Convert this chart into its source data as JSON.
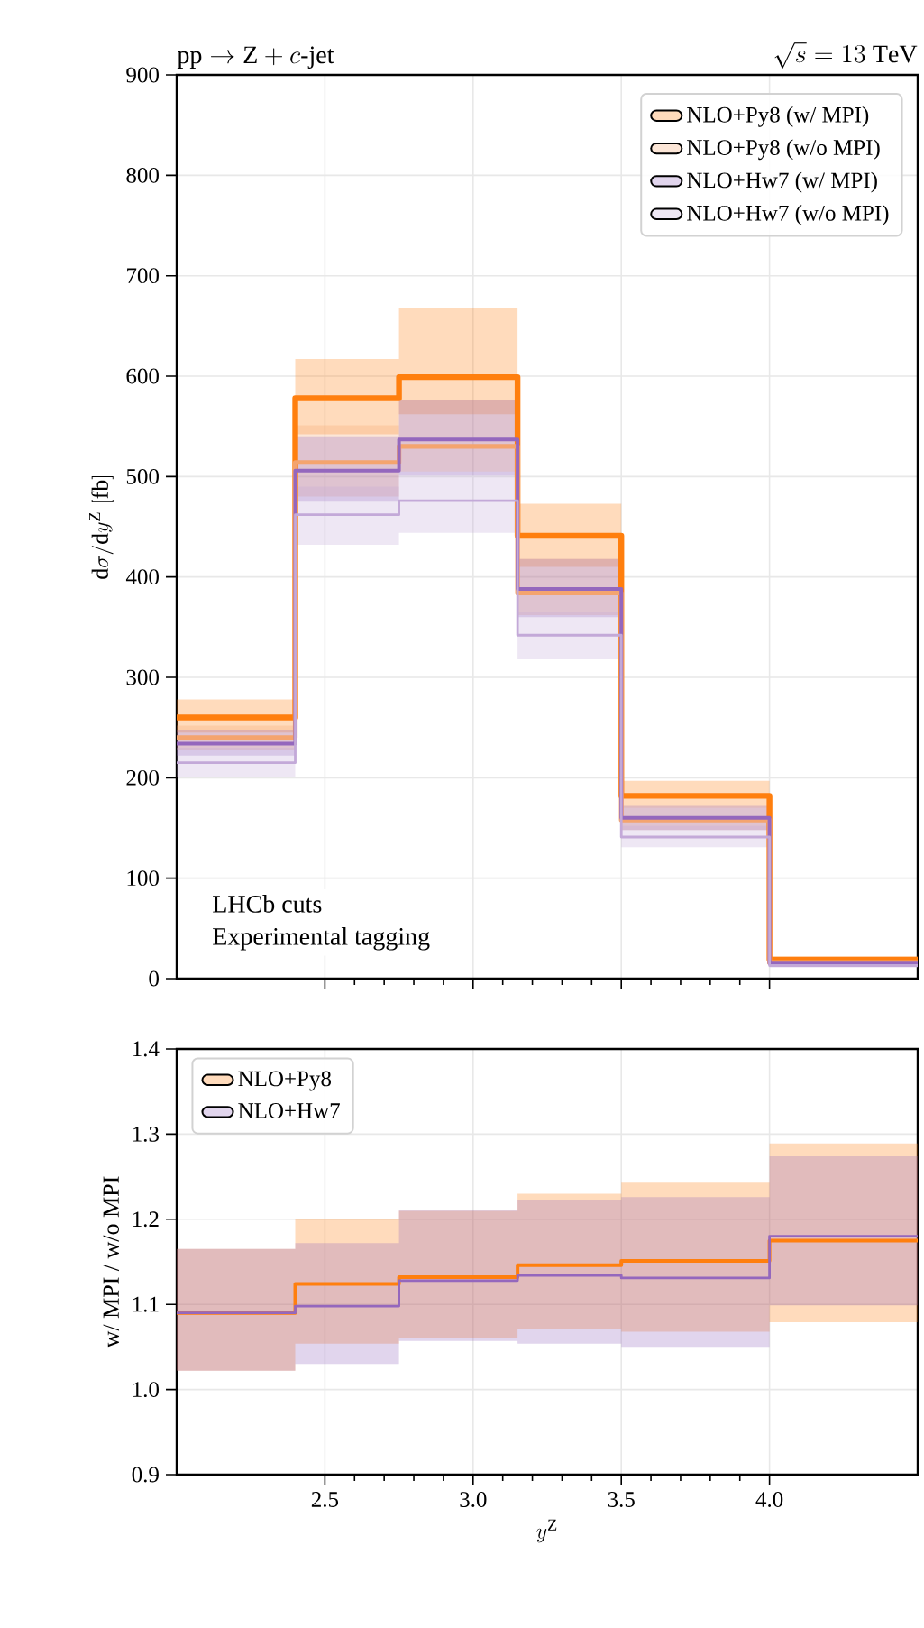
{
  "chart_data": [
    {
      "type": "step",
      "title": "\\mathrm{pp} \\to \\mathrm{Z} + c\\text{-jet}",
      "subtitle": "\\sqrt{s} = 13~\\mathrm{TeV}",
      "ylabel": "\\mathrm{d}\\sigma/\\mathrm{d}y^{\\mathrm{Z}}~[\\mathrm{fb}]",
      "annotations": [
        "LHCb cuts",
        "Experimental tagging"
      ],
      "x": [
        2.0,
        2.4,
        2.75,
        3.15,
        3.5,
        4.0,
        4.5
      ],
      "xlim": [
        2.0,
        4.5
      ],
      "xticks": [
        2.5,
        3.0,
        3.5,
        4.0
      ],
      "ylim": [
        0,
        900
      ],
      "yticks": [
        0,
        100,
        200,
        300,
        400,
        500,
        600,
        700,
        800,
        900
      ],
      "grid": true,
      "legend": "top right",
      "tick_labels": "y",
      "series": [
        {
          "name": "NLO+Py8 (w/ MPI)",
          "color": "#ff7f0e",
          "values": [
            260,
            578,
            599,
            441,
            182,
            19,
            19
          ],
          "lower": [
            245,
            542,
            562,
            410,
            170,
            17,
            17
          ],
          "upper": [
            278,
            617,
            668,
            473,
            197,
            22,
            22
          ]
        },
        {
          "name": "NLO+Py8 (w/o MPI)",
          "color": "#f4a46e",
          "values": [
            240,
            514,
            530,
            384,
            158,
            16,
            16
          ],
          "lower": [
            228,
            480,
            505,
            362,
            148,
            14,
            14
          ],
          "upper": [
            252,
            551,
            576,
            418,
            170,
            18,
            18
          ]
        },
        {
          "name": "NLO+Hw7 (w/ MPI)",
          "color": "#9467bd",
          "values": [
            234,
            506,
            537,
            388,
            160,
            15,
            15
          ],
          "lower": [
            222,
            475,
            501,
            360,
            148,
            13,
            13
          ],
          "upper": [
            248,
            540,
            576,
            418,
            172,
            17,
            17
          ]
        },
        {
          "name": "NLO+Hw7 (w/o MPI)",
          "color": "#c3a9d8",
          "values": [
            215,
            462,
            476,
            342,
            141,
            13,
            13
          ],
          "lower": [
            201,
            432,
            444,
            318,
            131,
            11,
            11
          ],
          "upper": [
            230,
            490,
            505,
            365,
            152,
            15,
            15
          ]
        }
      ]
    },
    {
      "type": "step",
      "xlabel": "y^{\\mathrm{Z}}",
      "ylabel": "w/ MPI / w/o MPI",
      "x": [
        2.0,
        2.4,
        2.75,
        3.15,
        3.5,
        4.0,
        4.5
      ],
      "xlim": [
        2.0,
        4.5
      ],
      "xticks": [
        2.5,
        {
          "value": 3.0,
          "label": "3.0"
        },
        3.5,
        {
          "value": 4.0,
          "label": "4.0"
        }
      ],
      "ylim": [
        0.9,
        1.4
      ],
      "yticks": [
        0.9,
        {
          "value": 1.0,
          "label": "1.0"
        },
        1.1,
        1.2,
        1.3,
        1.4
      ],
      "grid": true,
      "legend": "top left",
      "series": [
        {
          "name": "NLO+Py8",
          "color": "#ff7f0e",
          "values": [
            1.09,
            1.124,
            1.132,
            1.146,
            1.151,
            1.175,
            1.175
          ],
          "lower": [
            1.022,
            1.054,
            1.06,
            1.071,
            1.068,
            1.079,
            1.079
          ],
          "upper": [
            1.165,
            1.2,
            1.21,
            1.23,
            1.243,
            1.289,
            1.289
          ]
        },
        {
          "name": "NLO+Hw7",
          "color": "#9467bd",
          "values": [
            1.09,
            1.098,
            1.128,
            1.134,
            1.131,
            1.18,
            1.18
          ],
          "lower": [
            1.022,
            1.03,
            1.057,
            1.054,
            1.049,
            1.099,
            1.099
          ],
          "upper": [
            1.165,
            1.172,
            1.211,
            1.223,
            1.226,
            1.274,
            1.274
          ]
        }
      ]
    }
  ]
}
